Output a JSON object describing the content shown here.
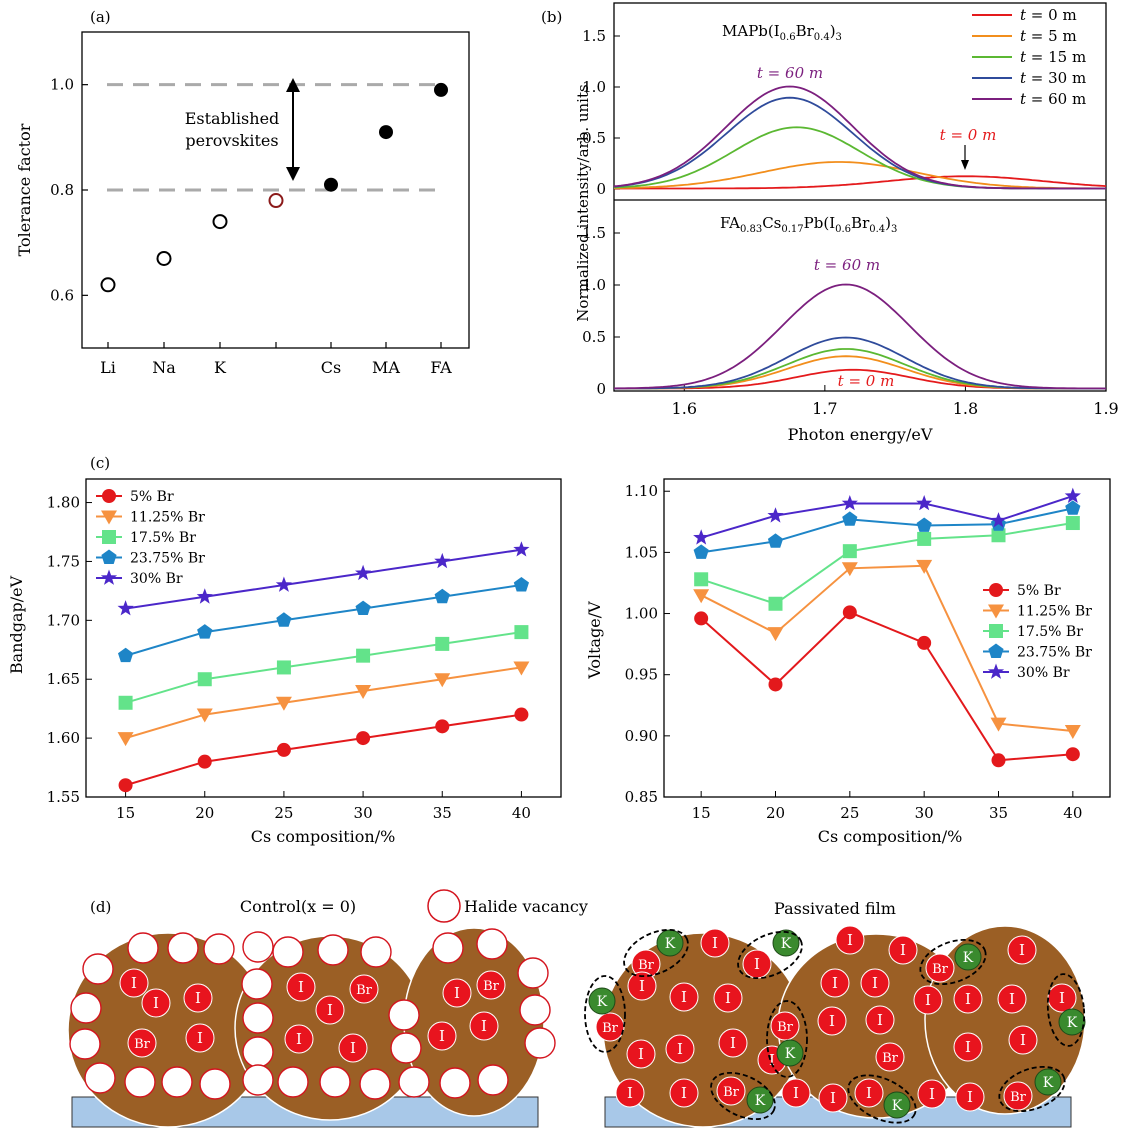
{
  "panels": {
    "a": {
      "label": "(a)"
    },
    "b": {
      "label": "(b)"
    },
    "c": {
      "label": "(c)"
    },
    "d": {
      "label": "(d)"
    }
  },
  "chart_data": [
    {
      "id": "a",
      "type": "scatter",
      "ylabel": "Tolerance factor",
      "xlabel": "",
      "ylim": [
        0.5,
        1.1
      ],
      "yticks": [
        0.6,
        0.8,
        1.0
      ],
      "categories": [
        "Li",
        "Na",
        "K",
        "",
        "Cs",
        "MA",
        "FA"
      ],
      "points": [
        {
          "cat": "Li",
          "y": 0.62,
          "style": "open",
          "color": "#000000"
        },
        {
          "cat": "Na",
          "y": 0.67,
          "style": "open",
          "color": "#000000"
        },
        {
          "cat": "K",
          "y": 0.74,
          "style": "open",
          "color": "#000000"
        },
        {
          "cat": "",
          "y": 0.78,
          "style": "open",
          "color": "#8b1a1a"
        },
        {
          "cat": "Cs",
          "y": 0.81,
          "style": "filled",
          "color": "#000000"
        },
        {
          "cat": "MA",
          "y": 0.91,
          "style": "filled",
          "color": "#000000"
        },
        {
          "cat": "FA",
          "y": 0.99,
          "style": "filled",
          "color": "#000000"
        }
      ],
      "reference_lines": [
        0.8,
        1.0
      ],
      "annotation": [
        "Established",
        "perovskites"
      ]
    },
    {
      "id": "b",
      "type": "line",
      "ylabel": "Normalized intensity/arb. units",
      "xlabel": "Photon energy/eV",
      "xlim": [
        1.55,
        1.9
      ],
      "xticks": [
        1.6,
        1.7,
        1.8,
        1.9
      ],
      "yticks": [
        0,
        0.5,
        1.0,
        1.5
      ],
      "ylim": [
        0,
        1.8
      ],
      "legend": [
        {
          "t": "t",
          "rest": " = 0 m",
          "color": "#e41a1c"
        },
        {
          "t": "t",
          "rest": " = 5 m",
          "color": "#f28e1c"
        },
        {
          "t": "t",
          "rest": " = 15 m",
          "color": "#5bb832"
        },
        {
          "t": "t",
          "rest": " = 30 m",
          "color": "#2f4b9b"
        },
        {
          "t": "t",
          "rest": " = 60 m",
          "color": "#7b1f7e"
        }
      ],
      "top": {
        "title_main": "MAPb(I",
        "title_sub1": "0.6",
        "title_mid": "Br",
        "title_sub2": "0.4",
        "title_end": ")",
        "title_sub3": "3",
        "label_t60": "t = 60 m",
        "label_t0": "t = 0 m",
        "series": [
          {
            "name": "t = 0 m",
            "peak_x": 1.8,
            "amp": 0.12,
            "sigma": 0.055
          },
          {
            "name": "t = 5 m",
            "peak_x": 1.71,
            "amp": 0.26,
            "sigma": 0.055
          },
          {
            "name": "t = 15 m",
            "peak_x": 1.68,
            "amp": 0.6,
            "sigma": 0.045
          },
          {
            "name": "t = 30 m",
            "peak_x": 1.675,
            "amp": 0.89,
            "sigma": 0.045
          },
          {
            "name": "t = 60 m",
            "peak_x": 1.675,
            "amp": 1.0,
            "sigma": 0.045
          }
        ]
      },
      "bottom": {
        "title_main": "FA",
        "title_sub1": "0.83",
        "title_mid1": "Cs",
        "title_sub2": "0.17",
        "title_mid2": "Pb(I",
        "title_sub3": "0.6",
        "title_mid3": "Br",
        "title_sub4": "0.4",
        "title_end": ")",
        "title_sub5": "3",
        "label_t60": "t = 60 m",
        "label_t0": "t = 0 m",
        "series": [
          {
            "name": "t = 0 m",
            "peak_x": 1.72,
            "amp": 0.18,
            "sigma": 0.04
          },
          {
            "name": "t = 5 m",
            "peak_x": 1.715,
            "amp": 0.31,
            "sigma": 0.042
          },
          {
            "name": "t = 15 m",
            "peak_x": 1.715,
            "amp": 0.38,
            "sigma": 0.042
          },
          {
            "name": "t = 30 m",
            "peak_x": 1.715,
            "amp": 0.49,
            "sigma": 0.042
          },
          {
            "name": "t = 60 m",
            "peak_x": 1.715,
            "amp": 1.0,
            "sigma": 0.045
          }
        ]
      }
    },
    {
      "id": "c-left",
      "type": "line",
      "ylabel": "Bandgap/eV",
      "xlabel": "Cs composition/%",
      "x": [
        15,
        20,
        25,
        30,
        35,
        40
      ],
      "ylim": [
        1.55,
        1.82
      ],
      "yticks": [
        1.55,
        1.6,
        1.65,
        1.7,
        1.75,
        1.8
      ],
      "series": [
        {
          "name": "5% Br",
          "color": "#e3191c",
          "marker": "circle",
          "values": [
            1.56,
            1.58,
            1.59,
            1.6,
            1.61,
            1.62
          ]
        },
        {
          "name": "11.25% Br",
          "color": "#f69240",
          "marker": "tri-down",
          "values": [
            1.6,
            1.62,
            1.63,
            1.64,
            1.65,
            1.66
          ]
        },
        {
          "name": "17.5% Br",
          "color": "#63e38a",
          "marker": "square",
          "values": [
            1.63,
            1.65,
            1.66,
            1.67,
            1.68,
            1.69
          ]
        },
        {
          "name": "23.75% Br",
          "color": "#1e85c7",
          "marker": "pentagon",
          "values": [
            1.67,
            1.69,
            1.7,
            1.71,
            1.72,
            1.73
          ]
        },
        {
          "name": "30% Br",
          "color": "#4b27c9",
          "marker": "star",
          "values": [
            1.71,
            1.72,
            1.73,
            1.74,
            1.75,
            1.76
          ]
        }
      ]
    },
    {
      "id": "c-right",
      "type": "line",
      "ylabel": "Voltage/V",
      "xlabel": "Cs composition/%",
      "x": [
        15,
        20,
        25,
        30,
        35,
        40
      ],
      "ylim": [
        0.85,
        1.11
      ],
      "yticks": [
        0.85,
        0.9,
        0.95,
        1.0,
        1.05,
        1.1
      ],
      "series": [
        {
          "name": "5% Br",
          "color": "#e3191c",
          "marker": "circle",
          "values": [
            0.996,
            0.942,
            1.001,
            0.976,
            0.88,
            0.885
          ]
        },
        {
          "name": "11.25% Br",
          "color": "#f69240",
          "marker": "tri-down",
          "values": [
            1.015,
            0.984,
            1.037,
            1.039,
            0.91,
            0.904
          ]
        },
        {
          "name": "17.5% Br",
          "color": "#63e38a",
          "marker": "square",
          "values": [
            1.028,
            1.008,
            1.051,
            1.061,
            1.064,
            1.074
          ]
        },
        {
          "name": "23.75% Br",
          "color": "#1e85c7",
          "marker": "pentagon",
          "values": [
            1.05,
            1.059,
            1.077,
            1.072,
            1.073,
            1.086
          ]
        },
        {
          "name": "30% Br",
          "color": "#4b27c9",
          "marker": "star",
          "values": [
            1.062,
            1.08,
            1.09,
            1.09,
            1.076,
            1.096
          ]
        }
      ]
    }
  ],
  "diagram_d": {
    "control_title": "Control(x = 0)",
    "vacancy_legend": "Halide vacancy",
    "passivated_title": "Passivated film",
    "ion_I": "I",
    "ion_Br": "Br",
    "ion_K": "K",
    "colors": {
      "grain": "#9b5f25",
      "substrate": "#a8c8e8",
      "ion": "#e8141e",
      "k": "#3a8a2e",
      "vacancy_edge": "#d4141e"
    }
  }
}
